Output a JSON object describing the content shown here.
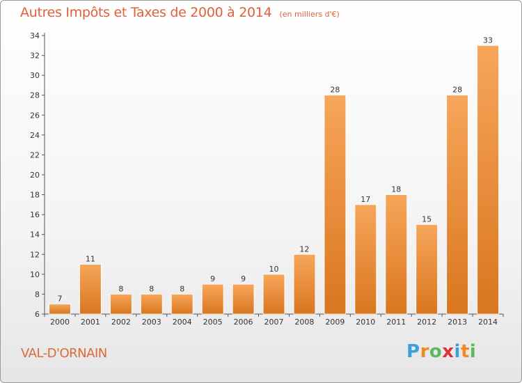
{
  "title": "Autres Impôts et Taxes de 2000 à 2014",
  "title_unit": "(en milliers d'€)",
  "place": "VAL-D'ORNAIN",
  "logo": {
    "text": "Proxiti",
    "letters": [
      "P",
      "r",
      "o",
      "x",
      "i",
      "t",
      "i"
    ],
    "colors": [
      "#3aa0d8",
      "#f08a1e",
      "#5cb85c",
      "#e0303a",
      "#3aa0d8",
      "#f08a1e",
      "#5cb85c"
    ]
  },
  "colors": {
    "title": "#e0603a",
    "bar_top": "#f7a65a",
    "bar_bottom": "#d9761f",
    "axis": "#555555",
    "grid": "#cccccc"
  },
  "chart_data": {
    "type": "bar",
    "title": "Autres Impôts et Taxes de 2000 à 2014",
    "subtitle": "(en milliers d'€)",
    "xlabel": "",
    "ylabel": "",
    "categories": [
      "2000",
      "2001",
      "2002",
      "2003",
      "2004",
      "2005",
      "2006",
      "2007",
      "2008",
      "2009",
      "2010",
      "2011",
      "2012",
      "2013",
      "2014"
    ],
    "values": [
      7,
      11,
      8,
      8,
      8,
      9,
      9,
      10,
      12,
      28,
      17,
      18,
      15,
      28,
      33
    ],
    "ylim": [
      6,
      34
    ],
    "yticks": [
      6,
      8,
      10,
      12,
      14,
      16,
      18,
      20,
      22,
      24,
      26,
      28,
      30,
      32,
      34
    ],
    "grid": false,
    "legend": "none"
  }
}
